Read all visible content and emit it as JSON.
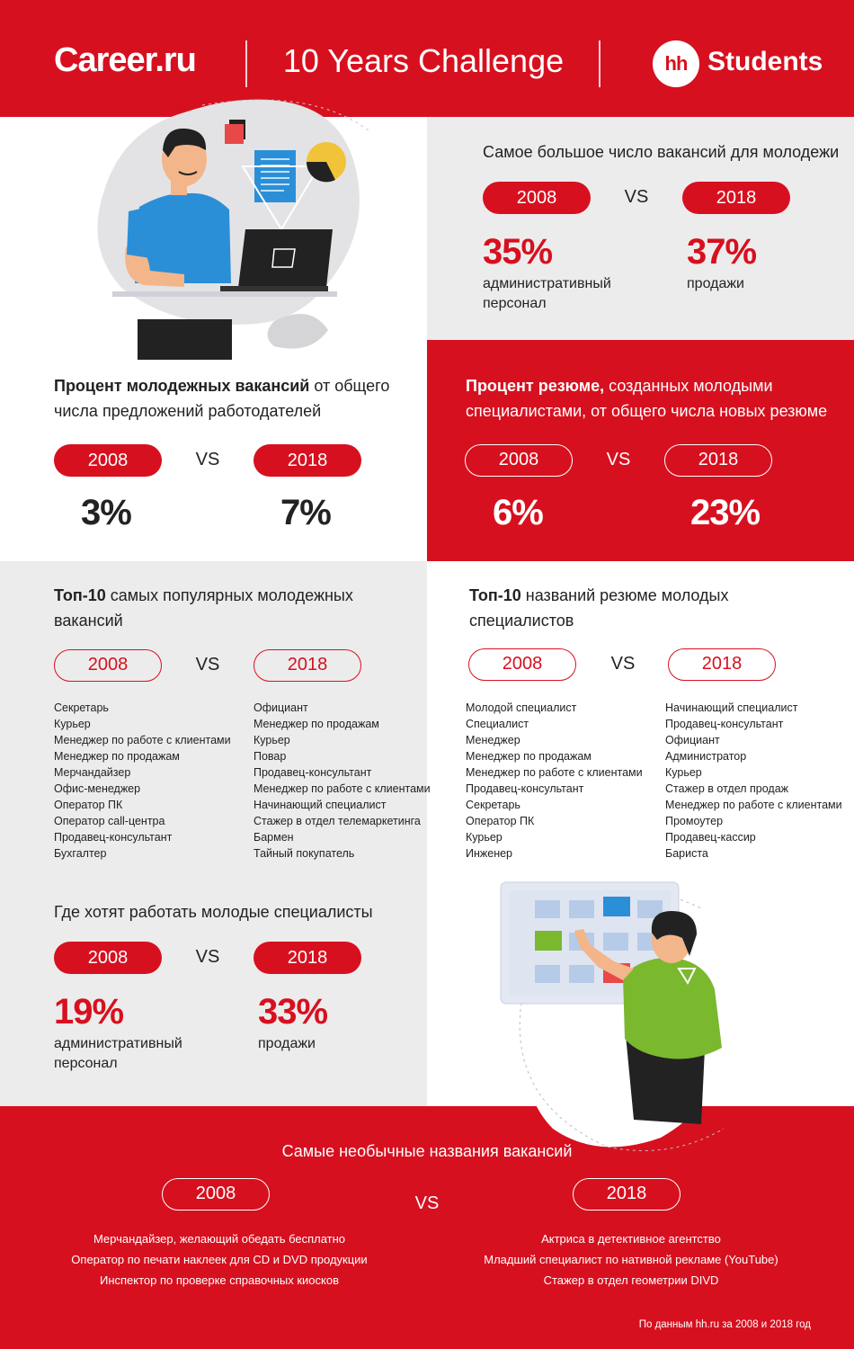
{
  "header": {
    "brand_left": "Career.ru",
    "title": "10 Years Challenge",
    "logo_text": "hh",
    "brand_right": "Students"
  },
  "vacancies_most": {
    "title": "Самое большое число вакансий для молодежи",
    "year_a": "2008",
    "vs": "VS",
    "year_b": "2018",
    "value_a": "35%",
    "label_a": [
      "административный",
      "персонал"
    ],
    "value_b": "37%",
    "label_b": "продажи"
  },
  "youth_share": {
    "title_bold": "Процент молодежных вакансий",
    "title_rest": " от общего",
    "title_line2": "числа предложений работодателей",
    "year_a": "2008",
    "vs": "VS",
    "year_b": "2018",
    "value_a": "3%",
    "value_b": "7%"
  },
  "resume_share": {
    "title_bold": "Процент резюме,",
    "title_rest": " созданных молодыми",
    "title_line2": "специалистами, от общего числа новых резюме",
    "year_a": "2008",
    "vs": "VS",
    "year_b": "2018",
    "value_a": "6%",
    "value_b": "23%"
  },
  "top_vacancies": {
    "title_bold": "Топ-10",
    "title_rest": " самых популярных молодежных",
    "title_line2": "вакансий",
    "year_a": "2008",
    "vs": "VS",
    "year_b": "2018",
    "list_a": [
      "Секретарь",
      "Курьер",
      "Менеджер по работе с клиентами",
      "Менеджер по продажам",
      "Мерчандайзер",
      "Офис-менеджер",
      "Оператор ПК",
      "Оператор call-центра",
      "Продавец-консультант",
      "Бухгалтер"
    ],
    "list_b": [
      "Официант",
      "Менеджер по продажам",
      "Курьер",
      "Повар",
      "Продавец-консультант",
      "Менеджер по работе с клиентами",
      "Начинающий специалист",
      "Стажер в отдел телемаркетинга",
      "Бармен",
      "Тайный покупатель"
    ]
  },
  "top_resumes": {
    "title_bold": "Топ-10",
    "title_rest": " названий резюме молодых",
    "title_line2": "специалистов",
    "year_a": "2008",
    "vs": "VS",
    "year_b": "2018",
    "list_a": [
      "Молодой специалист",
      "Специалист",
      "Менеджер",
      "Менеджер по продажам",
      "Менеджер по работе с клиентами",
      "Продавец-консультант",
      "Секретарь",
      "Оператор ПК",
      "Курьер",
      "Инженер"
    ],
    "list_b": [
      "Начинающий специалист",
      "Продавец-консультант",
      "Официант",
      "Администратор",
      "Курьер",
      "Стажер в отдел продаж",
      "Менеджер по работе с клиентами",
      "Промоутер",
      "Продавец-кассир",
      "Бариста"
    ]
  },
  "want_to_work": {
    "title": "Где хотят работать молодые специалисты",
    "year_a": "2008",
    "vs": "VS",
    "year_b": "2018",
    "value_a": "19%",
    "label_a": [
      "административный",
      "персонал"
    ],
    "value_b": "33%",
    "label_b": "продажи"
  },
  "unusual": {
    "title": "Самые необычные названия вакансий",
    "year_a": "2008",
    "vs": "VS",
    "year_b": "2018",
    "list_a": [
      "Мерчандайзер, желающий обедать бесплатно",
      "Оператор по печати наклеек для CD и DVD продукции",
      "Инспектор по проверке справочных киосков"
    ],
    "list_b": [
      "Актриса в детективное агентство",
      "Младший специалист по нативной рекламе (YouTube)",
      "Стажер в отдел геометрии DIVD"
    ],
    "source": "По данным hh.ru за 2008 и 2018 год"
  },
  "colors": {
    "accent": "#d7101f",
    "gray": "#ececec",
    "blue_shirt": "#2b8fd8",
    "green_shirt": "#7ab82e"
  },
  "icons": [
    "person-laptop-illustration",
    "person-board-illustration"
  ]
}
